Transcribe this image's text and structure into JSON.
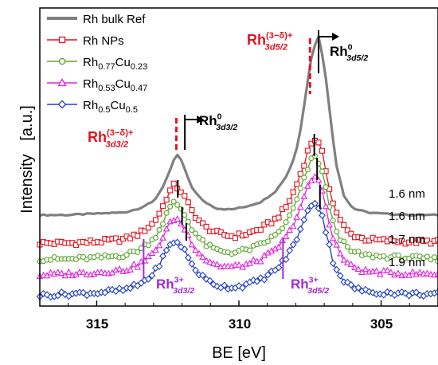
{
  "chart_data": {
    "type": "line",
    "xlabel": "BE [eV]",
    "ylabel": "Intensity   [a.u.]",
    "xlim": [
      317,
      303
    ],
    "x_reversed": true,
    "x_ticks": [
      315,
      310,
      305
    ],
    "x_tick_labels": [
      "315",
      "310",
      "305"
    ],
    "y_ticks_visible": false,
    "grid": false,
    "legend_position": "top-left",
    "series": [
      {
        "name": "Rh bulk Ref",
        "color": "#808080",
        "marker": "none",
        "offset": 0.66,
        "x": [
          317,
          316,
          315,
          314,
          313.5,
          313,
          312.7,
          312.4,
          312.2,
          312.0,
          311.7,
          311.3,
          310.8,
          310.3,
          309.8,
          309.2,
          308.7,
          308.3,
          308.0,
          307.8,
          307.6,
          307.4,
          307.2,
          307.0,
          306.8,
          306.6,
          306.3,
          306.0,
          305.5,
          305.0,
          304.0,
          303.0
        ],
        "y": [
          0.02,
          0.02,
          0.03,
          0.04,
          0.07,
          0.12,
          0.22,
          0.36,
          0.48,
          0.42,
          0.24,
          0.13,
          0.07,
          0.06,
          0.08,
          0.12,
          0.2,
          0.32,
          0.48,
          0.7,
          1.0,
          1.26,
          1.35,
          1.15,
          0.78,
          0.42,
          0.16,
          0.07,
          0.04,
          0.03,
          0.02,
          0.02
        ]
      },
      {
        "name": "Rh NPs",
        "color": "#e0141e",
        "marker": "square",
        "offset": 0.45,
        "label": "1.6 nm",
        "x": [
          317,
          316,
          315,
          314,
          313.5,
          313,
          312.7,
          312.5,
          312.3,
          312.1,
          311.9,
          311.6,
          311.2,
          310.7,
          310.2,
          309.7,
          309.2,
          308.7,
          308.3,
          308.0,
          307.7,
          307.5,
          307.3,
          307.1,
          306.9,
          306.7,
          306.4,
          306.1,
          305.6,
          305.0,
          304.0,
          303.0
        ],
        "y": [
          0.02,
          0.02,
          0.03,
          0.05,
          0.09,
          0.17,
          0.28,
          0.38,
          0.45,
          0.43,
          0.36,
          0.24,
          0.14,
          0.09,
          0.07,
          0.09,
          0.13,
          0.2,
          0.3,
          0.44,
          0.62,
          0.76,
          0.8,
          0.72,
          0.52,
          0.32,
          0.17,
          0.09,
          0.05,
          0.04,
          0.03,
          0.03
        ]
      },
      {
        "name": "Rh0.77Cu0.23",
        "color": "#58a52b",
        "marker": "circle",
        "offset": 0.33,
        "label": "1.6 nm",
        "x": [
          317,
          316,
          315,
          314,
          313.5,
          313,
          312.7,
          312.5,
          312.3,
          312.1,
          311.9,
          311.6,
          311.2,
          310.7,
          310.2,
          309.7,
          309.2,
          308.7,
          308.3,
          308.0,
          307.7,
          307.5,
          307.3,
          307.1,
          306.9,
          306.7,
          306.4,
          306.1,
          305.6,
          305.0,
          304.0,
          303.0
        ],
        "y": [
          0.02,
          0.02,
          0.03,
          0.05,
          0.09,
          0.17,
          0.28,
          0.38,
          0.44,
          0.42,
          0.35,
          0.23,
          0.13,
          0.08,
          0.07,
          0.09,
          0.13,
          0.2,
          0.3,
          0.44,
          0.62,
          0.75,
          0.79,
          0.7,
          0.5,
          0.3,
          0.16,
          0.08,
          0.05,
          0.04,
          0.03,
          0.02
        ]
      },
      {
        "name": "Rh0.53Cu0.47",
        "color": "#e020d8",
        "marker": "triangle",
        "offset": 0.21,
        "label": "1.7 nm",
        "x": [
          317,
          316,
          315,
          314,
          313.5,
          313,
          312.7,
          312.5,
          312.3,
          312.1,
          311.9,
          311.6,
          311.2,
          310.7,
          310.2,
          309.7,
          309.2,
          308.7,
          308.3,
          308.0,
          307.7,
          307.5,
          307.3,
          307.1,
          306.9,
          306.7,
          306.4,
          306.1,
          305.6,
          305.0,
          304.0,
          303.0
        ],
        "y": [
          0.02,
          0.03,
          0.04,
          0.06,
          0.1,
          0.18,
          0.29,
          0.38,
          0.44,
          0.43,
          0.36,
          0.24,
          0.14,
          0.09,
          0.08,
          0.1,
          0.14,
          0.21,
          0.31,
          0.44,
          0.6,
          0.72,
          0.76,
          0.68,
          0.49,
          0.3,
          0.16,
          0.09,
          0.05,
          0.04,
          0.03,
          0.03
        ]
      },
      {
        "name": "Rh0.5Cu0.5",
        "color": "#1f3ec8",
        "marker": "diamond",
        "offset": 0.06,
        "label": "1.9 nm",
        "x": [
          317,
          316,
          315,
          314,
          313.5,
          313,
          312.7,
          312.5,
          312.3,
          312.1,
          311.9,
          311.6,
          311.2,
          310.7,
          310.2,
          309.7,
          309.2,
          308.7,
          308.3,
          308.0,
          307.7,
          307.5,
          307.3,
          307.1,
          306.9,
          306.7,
          306.4,
          306.1,
          305.6,
          305.0,
          304.0,
          303.0
        ],
        "y": [
          0.02,
          0.03,
          0.04,
          0.06,
          0.1,
          0.18,
          0.29,
          0.37,
          0.42,
          0.41,
          0.35,
          0.23,
          0.14,
          0.09,
          0.08,
          0.1,
          0.14,
          0.21,
          0.31,
          0.43,
          0.58,
          0.69,
          0.72,
          0.64,
          0.46,
          0.28,
          0.15,
          0.09,
          0.05,
          0.04,
          0.03,
          0.03
        ]
      }
    ],
    "annotations": {
      "rh_delta_left": {
        "base": "Rh",
        "sub": "3d3/2",
        "sup": "(3−δ)+",
        "color": "#e0141e"
      },
      "rh0_left": {
        "base": "Rh",
        "sub": "3d3/2",
        "sup": "0",
        "color": "#000000"
      },
      "rh_delta_right": {
        "base": "Rh",
        "sub": "3d5/2",
        "sup": "(3−δ)+",
        "color": "#e0141e"
      },
      "rh0_right": {
        "base": "Rh",
        "sub": "3d5/2",
        "sup": "0",
        "color": "#000000"
      },
      "rh3_left": {
        "base": "Rh",
        "sub": "3d3/2",
        "sup": "3+",
        "color": "#a02ad0"
      },
      "rh3_right": {
        "base": "Rh",
        "sub": "3d5/2",
        "sup": "3+",
        "color": "#a02ad0"
      }
    }
  }
}
